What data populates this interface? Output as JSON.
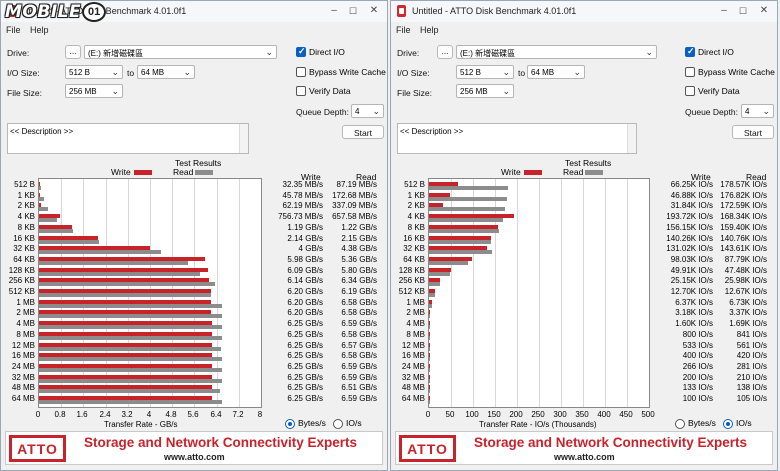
{
  "watermark": {
    "text": "MOBILE",
    "badge": "01"
  },
  "shared": {
    "menu": [
      "File",
      "Help"
    ],
    "drive_label": "Drive:",
    "browse_label": "...",
    "drive_value": "(E:) 新增磁碟區",
    "io_size_label": "I/O Size:",
    "io_from": "512 B",
    "io_to_label": "to",
    "io_to": "64 MB",
    "file_size_label": "File Size:",
    "file_size": "256 MB",
    "direct_io": "Direct I/O",
    "bypass_write_cache": "Bypass Write Cache",
    "verify_data": "Verify Data",
    "queue_depth_label": "Queue Depth:",
    "queue_depth": "4",
    "description": "<< Description >>",
    "start": "Start",
    "test_results": "Test Results",
    "write_legend": "Write",
    "read_legend": "Read",
    "col_write": "Write",
    "col_read": "Read",
    "radio_bytes": "Bytes/s",
    "radio_io": "IO/s",
    "tagline": "Storage and Network Connectivity Experts",
    "url": "www.atto.com",
    "logo": "ATTO",
    "colors": {
      "write": "#c8232b",
      "read": "#8c8c8c",
      "accent": "#0a5fc4"
    },
    "window_controls": {
      "minimize": "–",
      "maximize": "☐",
      "close": "✕"
    }
  },
  "left": {
    "title": "Untitled - ATTO Disk Benchmark 4.01.0f1",
    "selected_unit": "Bytes/s",
    "chart_data": {
      "type": "bar",
      "title": "Test Results",
      "xlabel": "Transfer Rate - GB/s",
      "xlim": [
        0,
        8
      ],
      "xticks": [
        "0",
        "0.8",
        "1.6",
        "2.4",
        "3.2",
        "4",
        "4.8",
        "5.6",
        "6.4",
        "7.2",
        "8"
      ],
      "categories": [
        "512 B",
        "1 KB",
        "2 KB",
        "4 KB",
        "8 KB",
        "16 KB",
        "32 KB",
        "64 KB",
        "128 KB",
        "256 KB",
        "512 KB",
        "1 MB",
        "2 MB",
        "4 MB",
        "8 MB",
        "12 MB",
        "16 MB",
        "24 MB",
        "32 MB",
        "48 MB",
        "64 MB"
      ],
      "series": [
        {
          "name": "Write",
          "values": [
            0.03235,
            0.04578,
            0.06219,
            0.75673,
            1.19,
            2.14,
            4,
            5.98,
            6.09,
            6.14,
            6.2,
            6.2,
            6.2,
            6.25,
            6.25,
            6.25,
            6.25,
            6.25,
            6.25,
            6.25,
            6.25
          ]
        },
        {
          "name": "Read",
          "values": [
            0.08719,
            0.17268,
            0.33709,
            0.65758,
            1.22,
            2.15,
            4.38,
            5.36,
            5.8,
            6.34,
            6.19,
            6.58,
            6.58,
            6.59,
            6.58,
            6.57,
            6.58,
            6.59,
            6.59,
            6.51,
            6.59
          ]
        }
      ],
      "write_text": [
        "32.35 MB/s",
        "45.78 MB/s",
        "62.19 MB/s",
        "756.73 MB/s",
        "1.19 GB/s",
        "2.14 GB/s",
        "4 GB/s",
        "5.98 GB/s",
        "6.09 GB/s",
        "6.14 GB/s",
        "6.20 GB/s",
        "6.20 GB/s",
        "6.20 GB/s",
        "6.25 GB/s",
        "6.25 GB/s",
        "6.25 GB/s",
        "6.25 GB/s",
        "6.25 GB/s",
        "6.25 GB/s",
        "6.25 GB/s",
        "6.25 GB/s"
      ],
      "read_text": [
        "87.19 MB/s",
        "172.68 MB/s",
        "337.09 MB/s",
        "657.58 MB/s",
        "1.22 GB/s",
        "2.15 GB/s",
        "4.38 GB/s",
        "5.36 GB/s",
        "5.80 GB/s",
        "6.34 GB/s",
        "6.19 GB/s",
        "6.58 GB/s",
        "6.58 GB/s",
        "6.59 GB/s",
        "6.58 GB/s",
        "6.57 GB/s",
        "6.58 GB/s",
        "6.59 GB/s",
        "6.59 GB/s",
        "6.51 GB/s",
        "6.59 GB/s"
      ]
    }
  },
  "right": {
    "title": "Untitled - ATTO Disk Benchmark 4.01.0f1",
    "selected_unit": "IO/s",
    "chart_data": {
      "type": "bar",
      "title": "Test Results",
      "xlabel": "Transfer Rate - IO/s (Thousands)",
      "xlim": [
        0,
        500
      ],
      "xticks": [
        "0",
        "50",
        "100",
        "150",
        "200",
        "250",
        "300",
        "350",
        "400",
        "450",
        "500"
      ],
      "categories": [
        "512 B",
        "1 KB",
        "2 KB",
        "4 KB",
        "8 KB",
        "16 KB",
        "32 KB",
        "64 KB",
        "128 KB",
        "256 KB",
        "512 KB",
        "1 MB",
        "2 MB",
        "4 MB",
        "8 MB",
        "12 MB",
        "16 MB",
        "24 MB",
        "32 MB",
        "48 MB",
        "64 MB"
      ],
      "series": [
        {
          "name": "Write",
          "values": [
            66.25,
            46.88,
            31.84,
            193.72,
            156.15,
            140.26,
            131.02,
            98.03,
            49.91,
            25.15,
            12.7,
            6.37,
            3.18,
            1.6,
            0.8,
            0.533,
            0.4,
            0.266,
            0.2,
            0.133,
            0.1
          ]
        },
        {
          "name": "Read",
          "values": [
            178.57,
            176.82,
            172.59,
            168.34,
            159.4,
            140.76,
            143.61,
            87.79,
            47.48,
            25.98,
            12.67,
            6.73,
            3.37,
            1.69,
            0.841,
            0.561,
            0.42,
            0.281,
            0.21,
            0.138,
            0.105
          ]
        }
      ],
      "write_text": [
        "66.25K IO/s",
        "46.88K IO/s",
        "31.84K IO/s",
        "193.72K IO/s",
        "156.15K IO/s",
        "140.26K IO/s",
        "131.02K IO/s",
        "98.03K IO/s",
        "49.91K IO/s",
        "25.15K IO/s",
        "12.70K IO/s",
        "6.37K IO/s",
        "3.18K IO/s",
        "1.60K IO/s",
        "800 IO/s",
        "533 IO/s",
        "400 IO/s",
        "266 IO/s",
        "200 IO/s",
        "133 IO/s",
        "100 IO/s"
      ],
      "read_text": [
        "178.57K IO/s",
        "176.82K IO/s",
        "172.59K IO/s",
        "168.34K IO/s",
        "159.40K IO/s",
        "140.76K IO/s",
        "143.61K IO/s",
        "87.79K IO/s",
        "47.48K IO/s",
        "25.98K IO/s",
        "12.67K IO/s",
        "6.73K IO/s",
        "3.37K IO/s",
        "1.69K IO/s",
        "841 IO/s",
        "561 IO/s",
        "420 IO/s",
        "281 IO/s",
        "210 IO/s",
        "138 IO/s",
        "105 IO/s"
      ]
    }
  }
}
